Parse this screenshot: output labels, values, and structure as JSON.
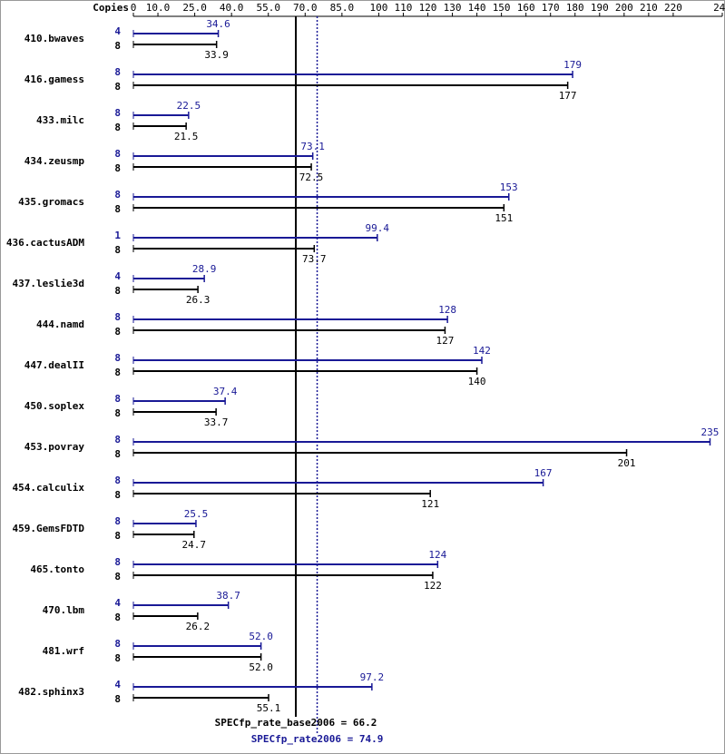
{
  "chart_data": {
    "type": "bar",
    "orientation": "horizontal",
    "x_axis_label": "Copies",
    "categories": [
      "410.bwaves",
      "416.gamess",
      "433.milc",
      "434.zeusmp",
      "435.gromacs",
      "436.cactusADM",
      "437.leslie3d",
      "444.namd",
      "447.dealII",
      "450.soplex",
      "453.povray",
      "454.calculix",
      "459.GemsFDTD",
      "465.tonto",
      "470.lbm",
      "481.wrf",
      "482.sphinx3"
    ],
    "xlim": [
      0,
      240
    ],
    "xticks": [
      0,
      {
        "value": 10,
        "label": "10.0"
      },
      {
        "value": 25,
        "label": "25.0"
      },
      {
        "value": 40,
        "label": "40.0"
      },
      {
        "value": 55,
        "label": "55.0"
      },
      {
        "value": 70,
        "label": "70.0"
      },
      {
        "value": 85,
        "label": "85.0"
      },
      100,
      110,
      120,
      130,
      140,
      150,
      160,
      170,
      180,
      190,
      200,
      210,
      220,
      240
    ],
    "series": [
      {
        "color": "#191996",
        "copies": [
          4,
          8,
          8,
          8,
          8,
          1,
          4,
          8,
          8,
          8,
          8,
          8,
          8,
          8,
          4,
          8,
          4
        ],
        "values": [
          34.6,
          179,
          22.5,
          73.1,
          153,
          99.4,
          28.9,
          128,
          142,
          37.4,
          235,
          167,
          25.5,
          124,
          38.7,
          52.0,
          97.2
        ],
        "value_labels": [
          "34.6",
          "179",
          "22.5",
          "73.1",
          "153",
          "99.4",
          "28.9",
          "128",
          "142",
          "37.4",
          "235",
          "167",
          "25.5",
          "124",
          "38.7",
          "52.0",
          "97.2"
        ]
      },
      {
        "color": "#000000",
        "copies": [
          8,
          8,
          8,
          8,
          8,
          8,
          8,
          8,
          8,
          8,
          8,
          8,
          8,
          8,
          8,
          8,
          8
        ],
        "values": [
          33.9,
          177,
          21.5,
          72.5,
          151,
          73.7,
          26.3,
          127,
          140,
          33.7,
          201,
          121,
          24.7,
          122,
          26.2,
          52.0,
          55.1
        ],
        "value_labels": [
          "33.9",
          "177",
          "21.5",
          "72.5",
          "151",
          "73.7",
          "26.3",
          "127",
          "140",
          "33.7",
          "201",
          "121",
          "24.7",
          "122",
          "26.2",
          "52.0",
          "55.1"
        ]
      }
    ],
    "reference_lines": [
      {
        "value": 66.2,
        "label": "SPECfp_rate_base2006 = 66.2",
        "color": "#000000",
        "dashed": false
      },
      {
        "value": 74.9,
        "label": "SPECfp_rate2006 = 74.9",
        "color": "#191996",
        "dashed": true
      }
    ]
  }
}
